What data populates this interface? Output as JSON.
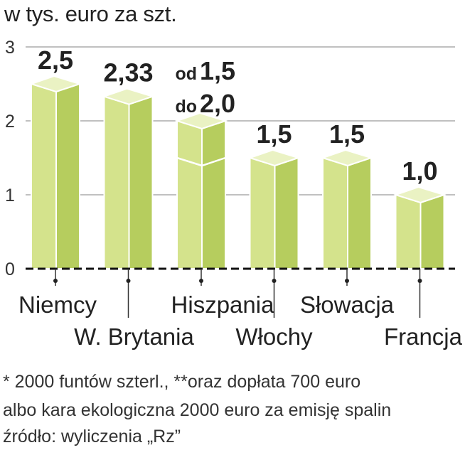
{
  "unit_title": "w tys. euro za szt.",
  "footnotes": [
    "* 2000 funtów szterl., **oraz dopłata 700 euro",
    "albo kara ekologiczna  2000 euro za emisję spalin",
    "źródło: wyliczenia „Rz”"
  ],
  "colors": {
    "bar_front": "#d4e38c",
    "bar_side": "#b6cd5e",
    "bar_top": "#eaf2c3",
    "bar_stroke": "#ffffff",
    "highlight_value": "#c8102e",
    "text": "#222222"
  },
  "chart_data": {
    "type": "bar",
    "title": "w tys. euro za szt.",
    "xlabel": "",
    "ylabel": "",
    "ylim": [
      0,
      3
    ],
    "yticks": [
      "0",
      "1",
      "2",
      "3"
    ],
    "categories": [
      "Niemcy",
      "W. Brytania",
      "Hiszpania",
      "Włochy",
      "Słowacja",
      "Francja"
    ],
    "values": [
      2.5,
      2.33,
      2.0,
      1.5,
      1.5,
      1.0
    ],
    "range_low": [
      null,
      null,
      1.5,
      null,
      null,
      null
    ],
    "value_labels": [
      "2,5",
      "2,33",
      "",
      "1,5",
      "1,5",
      "1,0"
    ],
    "range_label": {
      "from_prefix": "od",
      "from_value": "1,5",
      "to_prefix": "do",
      "to_value": "2,0"
    },
    "highlighted_index": 0,
    "grid": true
  }
}
